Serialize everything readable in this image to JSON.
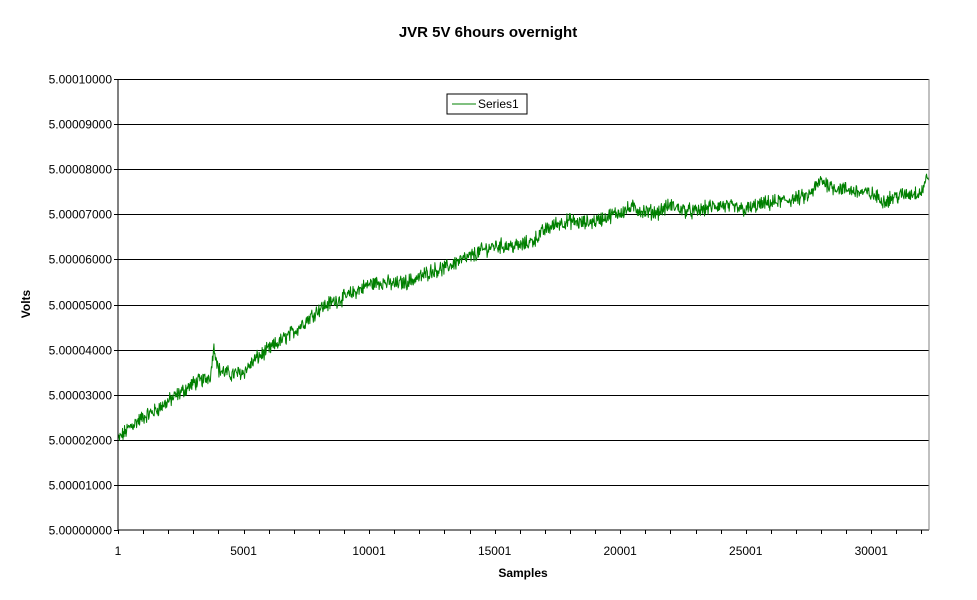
{
  "chart_data": {
    "type": "line",
    "title": "JVR 5V 6hours overnight",
    "xlabel": "Samples",
    "ylabel": "Volts",
    "xlim": [
      1,
      32300
    ],
    "ylim": [
      5.0,
      5.0001
    ],
    "x_tick_labels": [
      "1",
      "5001",
      "10001",
      "15001",
      "20001",
      "25001",
      "30001"
    ],
    "x_tick_values": [
      1,
      5001,
      10001,
      15001,
      20001,
      25001,
      30001
    ],
    "y_tick_labels": [
      "5.00000000",
      "5.00001000",
      "5.00002000",
      "5.00003000",
      "5.00004000",
      "5.00005000",
      "5.00006000",
      "5.00007000",
      "5.00008000",
      "5.00009000",
      "5.00010000"
    ],
    "y_tick_values": [
      5.0,
      5.00001,
      5.00002,
      5.00003,
      5.00004,
      5.00005,
      5.00006,
      5.00007,
      5.00008,
      5.00009,
      5.0001
    ],
    "grid": "horizontal",
    "legend_position": "top-center",
    "series": [
      {
        "name": "Series1",
        "color": "#008000",
        "x": [
          1,
          500,
          1000,
          1500,
          2000,
          2500,
          3000,
          3500,
          3700,
          3800,
          3900,
          4000,
          4500,
          5000,
          5500,
          6000,
          6500,
          7000,
          7500,
          8000,
          8500,
          9000,
          9500,
          10000,
          10500,
          11000,
          11500,
          12000,
          12500,
          13000,
          13500,
          14000,
          14500,
          15000,
          15500,
          16000,
          16500,
          17000,
          17500,
          18000,
          18500,
          19000,
          19500,
          20000,
          20500,
          21000,
          21500,
          22000,
          22500,
          23000,
          23500,
          24000,
          24500,
          25000,
          25500,
          26000,
          26500,
          27000,
          27500,
          28000,
          28500,
          29000,
          29500,
          30000,
          30500,
          31000,
          31500,
          32000,
          32300
        ],
        "y": [
          5.00002,
          5.000023,
          5.000025,
          5.0000265,
          5.0000285,
          5.0000305,
          5.0000325,
          5.0000335,
          5.0000345,
          5.0000405,
          5.000039,
          5.0000355,
          5.0000345,
          5.000035,
          5.000038,
          5.00004,
          5.000042,
          5.000044,
          5.0000465,
          5.000049,
          5.0000505,
          5.0000515,
          5.000053,
          5.0000545,
          5.000055,
          5.0000545,
          5.000055,
          5.000056,
          5.0000575,
          5.000058,
          5.0000595,
          5.0000605,
          5.000062,
          5.000063,
          5.000063,
          5.000063,
          5.000064,
          5.0000665,
          5.000068,
          5.0000685,
          5.000068,
          5.0000685,
          5.0000695,
          5.0000705,
          5.0000715,
          5.0000705,
          5.0000705,
          5.000072,
          5.000071,
          5.0000705,
          5.0000715,
          5.000072,
          5.0000715,
          5.000071,
          5.000072,
          5.0000725,
          5.000073,
          5.0000735,
          5.000074,
          5.0000775,
          5.000076,
          5.0000755,
          5.000075,
          5.0000745,
          5.000073,
          5.000074,
          5.0000745,
          5.000075,
          5.000079
        ]
      }
    ]
  }
}
